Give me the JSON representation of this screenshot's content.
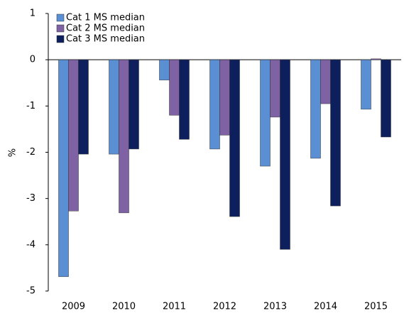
{
  "chart_data": {
    "type": "bar",
    "y_label": "%",
    "categories": [
      "2009",
      "2010",
      "2011",
      "2012",
      "2013",
      "2014",
      "2015"
    ],
    "series": [
      {
        "name": "Cat 1 MS median",
        "color": "#5b8fd4",
        "values": [
          -4.69,
          -2.04,
          -0.44,
          -1.93,
          -2.3,
          -2.13,
          -1.07
        ]
      },
      {
        "name": "Cat 2 MS median",
        "color": "#7f62a4",
        "values": [
          -3.27,
          -3.31,
          -1.2,
          -1.63,
          -1.24,
          -0.95,
          0.02
        ]
      },
      {
        "name": "Cat 3 MS median",
        "color": "#0d1f5c",
        "values": [
          -2.04,
          -1.93,
          -1.72,
          -3.39,
          -4.1,
          -3.16,
          -1.67
        ]
      }
    ],
    "ylim": [
      -5,
      1
    ],
    "yticks": [
      -5,
      -4,
      -3,
      -2,
      -1,
      0,
      1
    ],
    "grid": false,
    "legend": "top-left"
  }
}
